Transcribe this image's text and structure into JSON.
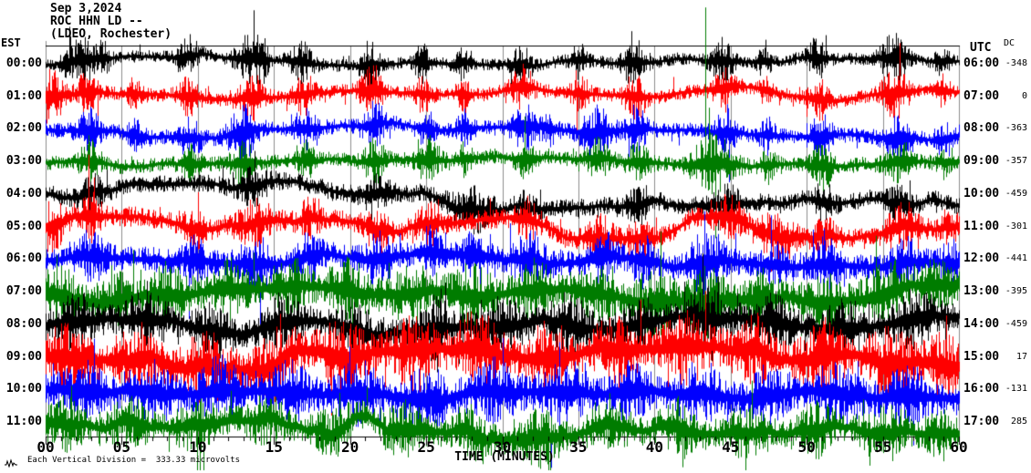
{
  "title": {
    "date": "Sep 3,2024",
    "station": "ROC HHN LD --",
    "location": "(LDEO, Rochester)"
  },
  "axes": {
    "left_header": "EST",
    "right_header": "UTC",
    "dc_header": "DC",
    "x_label": "TIME (MINUTES)",
    "x_tick_labels": [
      "00",
      "05",
      "10",
      "15",
      "20",
      "25",
      "30",
      "35",
      "40",
      "45",
      "50",
      "55",
      "60"
    ],
    "x_tick_minutes": [
      0,
      5,
      10,
      15,
      20,
      25,
      30,
      35,
      40,
      45,
      50,
      55,
      60
    ]
  },
  "footer": {
    "scale_note": "Each Vertical Division =  333.33 microvolts"
  },
  "colors": {
    "trace_cycle": [
      "#000000",
      "#ff0000",
      "#0000ff",
      "#007c00"
    ],
    "grid": "#8c8c8c",
    "frame": "#000000",
    "background": "#ffffff"
  },
  "chart_data": {
    "type": "line",
    "subtype": "helicorder-seismogram",
    "title": "ROC HHN LD -- (LDEO, Rochester) Sep 3,2024",
    "xlabel": "TIME (MINUTES)",
    "x_range_minutes": [
      0,
      60
    ],
    "minutes_per_line": 60,
    "gridlines_every_minutes": 5,
    "vertical_division_microvolts": "333.33",
    "rows": [
      {
        "est": "00:00",
        "utc": "06:00",
        "dc": "-348",
        "color": "#000000",
        "base_amp": 5,
        "wander": 1.5,
        "seed": 11,
        "bursts": [
          [
            1.6,
            9,
            0.4
          ],
          [
            2.6,
            14,
            0.5
          ],
          [
            3.8,
            11,
            0.3
          ],
          [
            9.3,
            13,
            0.5
          ],
          [
            13.4,
            16,
            0.6
          ],
          [
            14.2,
            11,
            0.3
          ],
          [
            16.8,
            13,
            0.5
          ],
          [
            21.3,
            17,
            0.4
          ],
          [
            24.7,
            12,
            0.35
          ],
          [
            27.3,
            10,
            0.3
          ],
          [
            31.2,
            13,
            0.45
          ],
          [
            35,
            11,
            0.35
          ],
          [
            38.6,
            16,
            0.5
          ],
          [
            44.4,
            15,
            0.5
          ],
          [
            47.2,
            9,
            0.3
          ],
          [
            50.7,
            13,
            0.45
          ],
          [
            55.7,
            17,
            0.6
          ],
          [
            58.9,
            10,
            0.3
          ]
        ]
      },
      {
        "est": "01:00",
        "utc": "07:00",
        "dc": "0",
        "color": "#ff0000",
        "base_amp": 5.5,
        "wander": 1.5,
        "seed": 22,
        "bursts": [
          [
            0.4,
            20,
            0.5
          ],
          [
            2.7,
            13,
            0.5
          ],
          [
            5.8,
            9,
            0.4
          ],
          [
            9.4,
            12,
            0.5
          ],
          [
            13.5,
            15,
            0.6
          ],
          [
            17,
            12,
            0.5
          ],
          [
            21.4,
            16,
            0.5
          ],
          [
            24.8,
            11,
            0.35
          ],
          [
            27.4,
            10,
            0.3
          ],
          [
            31.3,
            14,
            0.5
          ],
          [
            35.1,
            11,
            0.4
          ],
          [
            38.7,
            15,
            0.5
          ],
          [
            44.6,
            14,
            0.5
          ],
          [
            47.3,
            10,
            0.3
          ],
          [
            50.8,
            13,
            0.45
          ],
          [
            55.8,
            16,
            0.6
          ],
          [
            59,
            10,
            0.3
          ]
        ],
        "spikes": [
          [
            3.4,
            10,
            34
          ]
        ]
      },
      {
        "est": "02:00",
        "utc": "08:00",
        "dc": "-363",
        "color": "#0000ff",
        "base_amp": 6,
        "wander": 1.5,
        "seed": 33,
        "bursts": [
          [
            2.8,
            14,
            0.5
          ],
          [
            6,
            10,
            0.4
          ],
          [
            9.5,
            13,
            0.5
          ],
          [
            12.9,
            20,
            0.6
          ],
          [
            17.1,
            12,
            0.5
          ],
          [
            21.5,
            15,
            0.5
          ],
          [
            25,
            12,
            0.4
          ],
          [
            27.5,
            11,
            0.35
          ],
          [
            31.4,
            16,
            0.5
          ],
          [
            33,
            10,
            0.4
          ],
          [
            36.2,
            18,
            0.7
          ],
          [
            38.8,
            14,
            0.5
          ],
          [
            44.7,
            15,
            0.5
          ],
          [
            47.4,
            11,
            0.35
          ],
          [
            50.9,
            14,
            0.5
          ],
          [
            55.9,
            15,
            0.6
          ],
          [
            59.1,
            11,
            0.35
          ]
        ]
      },
      {
        "est": "03:00",
        "utc": "09:00",
        "dc": "-357",
        "color": "#007c00",
        "base_amp": 6,
        "wander": 1.5,
        "seed": 44,
        "bursts": [
          [
            2.9,
            12,
            0.5
          ],
          [
            9.6,
            11,
            0.45
          ],
          [
            13,
            14,
            0.55
          ],
          [
            17.2,
            11,
            0.45
          ],
          [
            21.6,
            14,
            0.5
          ],
          [
            25.1,
            16,
            0.5
          ],
          [
            27.6,
            10,
            0.35
          ],
          [
            31.5,
            12,
            0.45
          ],
          [
            36.3,
            12,
            0.5
          ],
          [
            38.9,
            13,
            0.5
          ],
          [
            43.8,
            20,
            0.9
          ],
          [
            47.5,
            10,
            0.35
          ],
          [
            51,
            15,
            0.5
          ],
          [
            56,
            14,
            0.55
          ],
          [
            59.2,
            10,
            0.35
          ]
        ],
        "spikes": [
          [
            43.35,
            170,
            16
          ],
          [
            43.55,
            60,
            12
          ]
        ]
      },
      {
        "est": "04:00",
        "utc": "10:00",
        "dc": "-459",
        "color": "#000000",
        "base_amp": 7,
        "wander": 4,
        "seed": 55,
        "bursts": [
          [
            3,
            9,
            0.6
          ],
          [
            13.6,
            10,
            0.7
          ],
          [
            21.7,
            11,
            0.6
          ],
          [
            28,
            13,
            1
          ],
          [
            31.6,
            9,
            0.5
          ],
          [
            39,
            10,
            0.6
          ],
          [
            44.8,
            11,
            0.6
          ],
          [
            51.1,
            9,
            0.5
          ],
          [
            56.1,
            10,
            0.6
          ]
        ],
        "drift": [
          [
            17,
            -4,
            3
          ],
          [
            30,
            5,
            4
          ],
          [
            50,
            -3,
            4
          ]
        ]
      },
      {
        "est": "05:00",
        "utc": "11:00",
        "dc": "-301",
        "color": "#ff0000",
        "base_amp": 8,
        "wander": 4,
        "seed": 66,
        "bursts": [
          [
            0.5,
            15,
            0.6
          ],
          [
            2.9,
            14,
            0.5
          ],
          [
            9.7,
            11,
            0.5
          ],
          [
            13.7,
            13,
            0.8
          ],
          [
            17.3,
            10,
            0.5
          ],
          [
            21.8,
            12,
            0.6
          ],
          [
            25.2,
            11,
            0.5
          ],
          [
            31.7,
            11,
            0.5
          ],
          [
            36.4,
            12,
            0.6
          ],
          [
            39.1,
            11,
            0.5
          ],
          [
            44.9,
            13,
            0.6
          ],
          [
            48,
            15,
            0.8
          ],
          [
            51.2,
            11,
            0.5
          ],
          [
            56.2,
            14,
            0.7
          ],
          [
            59.3,
            10,
            0.4
          ]
        ],
        "spikes": [
          [
            2.8,
            80,
            12
          ],
          [
            3.15,
            55,
            10
          ],
          [
            57.3,
            15,
            40
          ]
        ],
        "drift": [
          [
            14.5,
            -8,
            2.5
          ]
        ]
      },
      {
        "est": "06:00",
        "utc": "12:00",
        "dc": "-441",
        "color": "#0000ff",
        "base_amp": 10,
        "wander": 2,
        "seed": 77,
        "bursts": [
          [
            3,
            13,
            0.6
          ],
          [
            9.8,
            12,
            0.5
          ],
          [
            13.8,
            15,
            0.7
          ],
          [
            17.4,
            12,
            0.5
          ],
          [
            21.9,
            14,
            0.6
          ],
          [
            25.3,
            13,
            0.5
          ],
          [
            28.2,
            12,
            0.6
          ],
          [
            31.8,
            16,
            0.7
          ],
          [
            36.5,
            14,
            0.6
          ],
          [
            39.2,
            13,
            0.5
          ],
          [
            43.4,
            18,
            0.8
          ],
          [
            48.1,
            12,
            0.5
          ],
          [
            51.3,
            14,
            0.6
          ],
          [
            56.3,
            14,
            0.6
          ],
          [
            59.4,
            12,
            0.4
          ]
        ]
      },
      {
        "est": "07:00",
        "utc": "13:00",
        "dc": "-395",
        "color": "#007c00",
        "base_amp": 12,
        "wander": 2,
        "seed": 88,
        "bursts": [
          [
            1,
            14,
            0.8
          ],
          [
            4.5,
            13,
            0.8
          ],
          [
            8,
            15,
            0.9
          ],
          [
            12,
            14,
            0.8
          ],
          [
            16,
            13,
            0.8
          ],
          [
            20,
            15,
            0.9
          ],
          [
            24,
            14,
            0.8
          ],
          [
            28,
            16,
            0.9
          ],
          [
            32,
            15,
            0.8
          ],
          [
            36,
            14,
            0.8
          ],
          [
            40,
            16,
            0.9
          ],
          [
            43.5,
            18,
            0.8
          ],
          [
            47,
            14,
            0.8
          ],
          [
            51,
            15,
            0.8
          ],
          [
            55,
            16,
            0.9
          ],
          [
            58.5,
            13,
            0.7
          ]
        ]
      },
      {
        "est": "08:00",
        "utc": "14:00",
        "dc": "-459",
        "color": "#000000",
        "base_amp": 11,
        "wander": 2,
        "seed": 99,
        "bursts": [
          [
            2,
            13,
            0.9
          ],
          [
            6.5,
            14,
            0.9
          ],
          [
            11,
            13,
            0.8
          ],
          [
            15.5,
            15,
            0.9
          ],
          [
            20.5,
            14,
            0.8
          ],
          [
            25.5,
            16,
            0.9
          ],
          [
            30,
            15,
            0.9
          ],
          [
            34.5,
            16,
            0.9
          ],
          [
            39,
            14,
            0.8
          ],
          [
            43.5,
            15,
            0.9
          ],
          [
            48,
            14,
            0.8
          ],
          [
            52.5,
            15,
            0.9
          ],
          [
            57,
            16,
            0.9
          ]
        ]
      },
      {
        "est": "09:00",
        "utc": "15:00",
        "dc": "17",
        "color": "#ff0000",
        "base_amp": 14,
        "wander": 4,
        "seed": 110,
        "bursts": [
          [
            1.5,
            16,
            1
          ],
          [
            6,
            15,
            0.9
          ],
          [
            10.5,
            17,
            1
          ],
          [
            15,
            16,
            0.9
          ],
          [
            19.5,
            18,
            1
          ],
          [
            24,
            16,
            0.9
          ],
          [
            28.5,
            19,
            1
          ],
          [
            33,
            17,
            0.9
          ],
          [
            37.5,
            16,
            0.9
          ],
          [
            42,
            18,
            1
          ],
          [
            46.5,
            16,
            0.9
          ],
          [
            51,
            17,
            0.9
          ],
          [
            55.5,
            18,
            1
          ],
          [
            59,
            14,
            0.7
          ]
        ],
        "drift": [
          [
            20,
            6,
            4
          ],
          [
            33,
            -5,
            4
          ]
        ]
      },
      {
        "est": "10:00",
        "utc": "16:00",
        "dc": "-131",
        "color": "#0000ff",
        "base_amp": 13,
        "wander": 2,
        "seed": 121,
        "bursts": [
          [
            2.5,
            15,
            0.9
          ],
          [
            7,
            14,
            0.9
          ],
          [
            11.5,
            16,
            0.9
          ],
          [
            16,
            14,
            0.8
          ],
          [
            20.5,
            15,
            0.9
          ],
          [
            25,
            16,
            0.9
          ],
          [
            29.5,
            15,
            0.9
          ],
          [
            34,
            17,
            0.9
          ],
          [
            38.5,
            14,
            0.8
          ],
          [
            43,
            16,
            0.9
          ],
          [
            47.5,
            14,
            0.8
          ],
          [
            52,
            15,
            0.9
          ],
          [
            56.5,
            15,
            0.9
          ]
        ],
        "spikes": [
          [
            33.2,
            12,
            85
          ]
        ]
      },
      {
        "est": "11:00",
        "utc": "17:00",
        "dc": "285",
        "color": "#007c00",
        "base_amp": 11,
        "wander": 5,
        "seed": 132,
        "bursts": [
          [
            1.2,
            13,
            0.8
          ],
          [
            5.5,
            12,
            0.8
          ],
          [
            10,
            14,
            0.9
          ],
          [
            14.5,
            12,
            0.8
          ],
          [
            19,
            13,
            0.8
          ],
          [
            23.5,
            14,
            0.9
          ],
          [
            28,
            13,
            0.8
          ],
          [
            32.5,
            14,
            0.9
          ],
          [
            37,
            13,
            0.8
          ],
          [
            41.5,
            14,
            0.9
          ],
          [
            46,
            12,
            0.8
          ],
          [
            50.5,
            13,
            0.8
          ],
          [
            55,
            14,
            0.9
          ],
          [
            58.8,
            12,
            0.6
          ]
        ],
        "drift": [
          [
            10,
            14,
            2.5
          ],
          [
            18,
            9,
            1.6
          ],
          [
            24,
            -5,
            2
          ],
          [
            30,
            7,
            3
          ]
        ]
      }
    ]
  }
}
